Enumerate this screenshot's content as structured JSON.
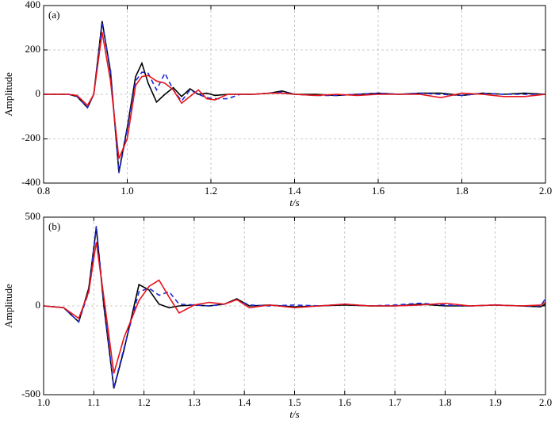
{
  "chart_data": [
    {
      "type": "line",
      "panel_label": "(a)",
      "xlabel": "t/s",
      "ylabel": "Amplitude",
      "xlim": [
        0.8,
        2.0
      ],
      "ylim": [
        -400,
        400
      ],
      "xticks": [
        0.8,
        {
          "value": 1.0,
          "label": "1.0"
        },
        1.2,
        1.4,
        1.6,
        1.8,
        {
          "value": 2.0,
          "label": "2.0"
        }
      ],
      "yticks": [
        -400,
        -200,
        0,
        200,
        400
      ],
      "grid": true,
      "x": [
        0.8,
        0.86,
        0.88,
        0.905,
        0.92,
        0.94,
        0.96,
        0.98,
        1.0,
        1.02,
        1.035,
        1.05,
        1.07,
        1.09,
        1.11,
        1.13,
        1.15,
        1.17,
        1.19,
        1.21,
        1.24,
        1.27,
        1.3,
        1.34,
        1.37,
        1.4,
        1.45,
        1.5,
        1.55,
        1.6,
        1.65,
        1.7,
        1.75,
        1.8,
        1.85,
        1.9,
        1.95,
        2.0
      ],
      "series": [
        {
          "color": "#000000",
          "dashed": false,
          "values": [
            0,
            0,
            -10,
            -60,
            0,
            330,
            100,
            -350,
            -150,
            80,
            140,
            50,
            -35,
            0,
            30,
            -10,
            25,
            0,
            5,
            -5,
            0,
            0,
            0,
            5,
            15,
            0,
            0,
            -5,
            0,
            5,
            0,
            5,
            5,
            -5,
            5,
            0,
            5,
            0
          ]
        },
        {
          "color": "#1f2ad6",
          "dashed": true,
          "values": [
            0,
            0,
            -10,
            -60,
            0,
            320,
            110,
            -355,
            -160,
            60,
            100,
            95,
            20,
            95,
            20,
            -30,
            20,
            0,
            -15,
            -20,
            -20,
            0,
            0,
            5,
            10,
            0,
            -5,
            -5,
            0,
            5,
            0,
            5,
            0,
            -5,
            5,
            0,
            0,
            0
          ]
        },
        {
          "color": "#e8141b",
          "dashed": false,
          "values": [
            0,
            0,
            -5,
            -50,
            0,
            280,
            60,
            -290,
            -200,
            40,
            80,
            85,
            60,
            50,
            20,
            -40,
            -10,
            20,
            -20,
            -25,
            0,
            0,
            0,
            5,
            5,
            0,
            -5,
            0,
            -5,
            0,
            0,
            0,
            -15,
            5,
            0,
            -10,
            -10,
            0
          ]
        }
      ]
    },
    {
      "type": "line",
      "panel_label": "(b)",
      "xlabel": "t/s",
      "ylabel": "Amplitude",
      "xlim": [
        1.0,
        2.0
      ],
      "ylim": [
        -500,
        500
      ],
      "xticks": [
        {
          "value": 1.0,
          "label": "1.0"
        },
        1.1,
        1.2,
        1.3,
        1.4,
        1.5,
        1.6,
        1.7,
        1.8,
        1.9,
        {
          "value": 2.0,
          "label": "2.0"
        }
      ],
      "yticks": [
        -500,
        0,
        500
      ],
      "grid": true,
      "x": [
        1.0,
        1.04,
        1.07,
        1.09,
        1.105,
        1.12,
        1.14,
        1.16,
        1.19,
        1.21,
        1.23,
        1.25,
        1.27,
        1.3,
        1.33,
        1.36,
        1.385,
        1.41,
        1.45,
        1.5,
        1.55,
        1.6,
        1.65,
        1.7,
        1.75,
        1.8,
        1.85,
        1.9,
        1.95,
        1.99,
        2.0
      ],
      "series": [
        {
          "color": "#000000",
          "dashed": false,
          "values": [
            0,
            -10,
            -90,
            100,
            440,
            0,
            -465,
            -250,
            120,
            90,
            10,
            -10,
            0,
            5,
            0,
            10,
            40,
            0,
            5,
            -5,
            0,
            5,
            0,
            0,
            10,
            0,
            0,
            5,
            0,
            -5,
            10
          ]
        },
        {
          "color": "#1f2ad6",
          "dashed": true,
          "values": [
            0,
            -10,
            -90,
            80,
            450,
            20,
            -460,
            -240,
            80,
            100,
            60,
            80,
            10,
            5,
            0,
            10,
            35,
            5,
            0,
            5,
            0,
            10,
            0,
            5,
            15,
            5,
            0,
            5,
            0,
            0,
            40
          ]
        },
        {
          "color": "#e8141b",
          "dashed": false,
          "values": [
            0,
            -10,
            -70,
            80,
            360,
            50,
            -380,
            -180,
            30,
            110,
            145,
            50,
            -40,
            5,
            20,
            10,
            35,
            -10,
            5,
            -10,
            0,
            10,
            0,
            0,
            5,
            15,
            0,
            5,
            0,
            5,
            20
          ]
        }
      ]
    }
  ]
}
